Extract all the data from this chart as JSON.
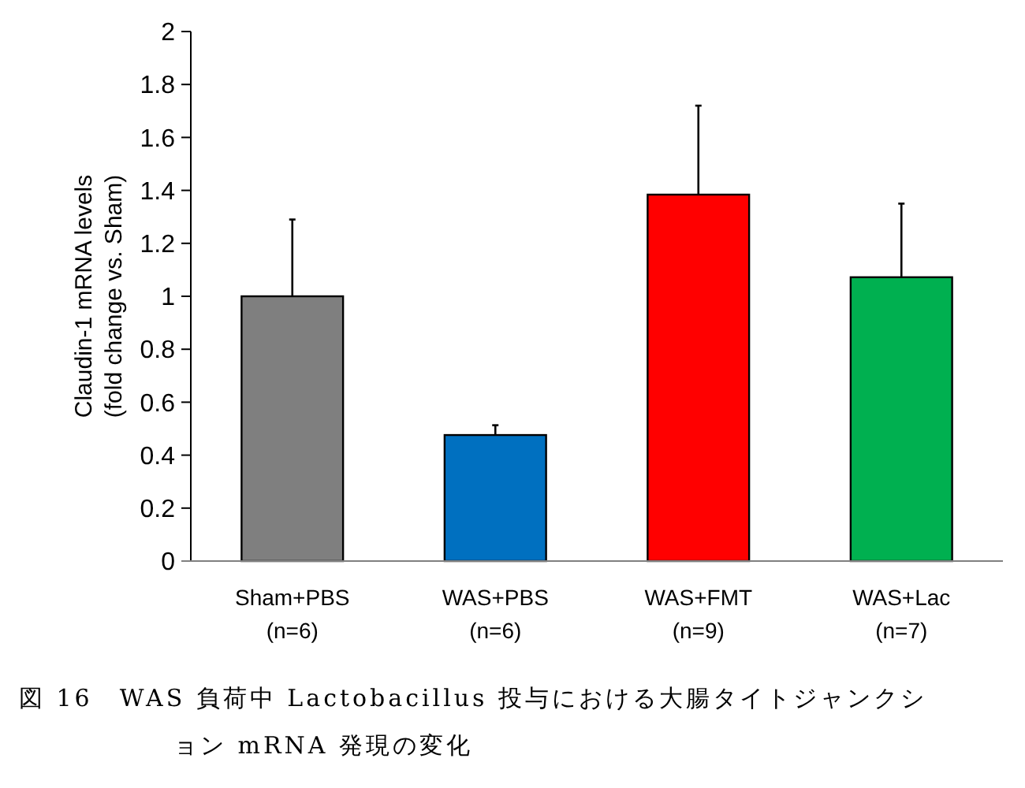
{
  "chart_data": {
    "type": "bar",
    "ylabel": "Claudin-1 mRNA levels\n(fold change vs. Sham)",
    "categories": [
      "Sham+PBS\n(n=6)",
      "WAS+PBS\n(n=6)",
      "WAS+FMT\n(n=9)",
      "WAS+Lac\n(n=7)"
    ],
    "values": [
      1.0,
      0.476,
      1.384,
      1.072
    ],
    "colors": [
      "#7f7f7f",
      "#0070c0",
      "#ff0000",
      "#00b050"
    ],
    "errors": [
      [
        1.0,
        1.29
      ],
      [
        0.476,
        0.513
      ],
      [
        1.384,
        1.72
      ],
      [
        1.072,
        1.35
      ]
    ],
    "ylim": [
      0,
      2
    ],
    "yticks": [
      0,
      0.2,
      0.4,
      0.6,
      0.8,
      1,
      1.2,
      1.4,
      1.6,
      1.8,
      2
    ],
    "grid": false,
    "annotations": [
      "図 16　WAS 負荷中 Lactobacillus 投与における大腸タイトジャンクション mRNA 発現の変化"
    ]
  }
}
